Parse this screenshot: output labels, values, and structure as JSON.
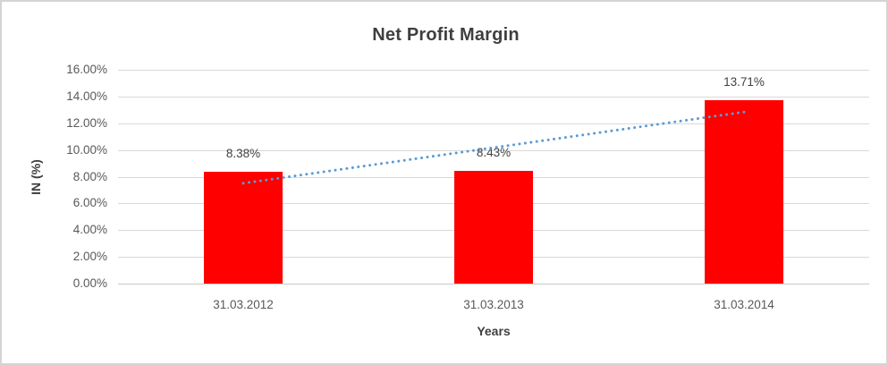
{
  "chart_data": {
    "type": "bar",
    "title": "Net Profit Margin",
    "xlabel": "Years",
    "ylabel": "IN (%)",
    "categories": [
      "31.03.2012",
      "31.03.2013",
      "31.03.2014"
    ],
    "values": [
      8.38,
      8.43,
      13.71
    ],
    "data_labels": [
      "8.38%",
      "8.43%",
      "13.71%"
    ],
    "ytick_labels": [
      "0.00%",
      "2.00%",
      "4.00%",
      "6.00%",
      "8.00%",
      "10.00%",
      "12.00%",
      "14.00%",
      "16.00%"
    ],
    "ylim": [
      0,
      16
    ],
    "ytick_step": 2,
    "grid": true,
    "legend": "none",
    "bar_color": "#ff0000",
    "text_colors": {
      "title": "#3f3f3f",
      "ticks": "#595959",
      "data_labels": "#404040"
    },
    "trendline": {
      "type": "linear",
      "style": "dotted",
      "color": "#5b9bd5"
    }
  }
}
